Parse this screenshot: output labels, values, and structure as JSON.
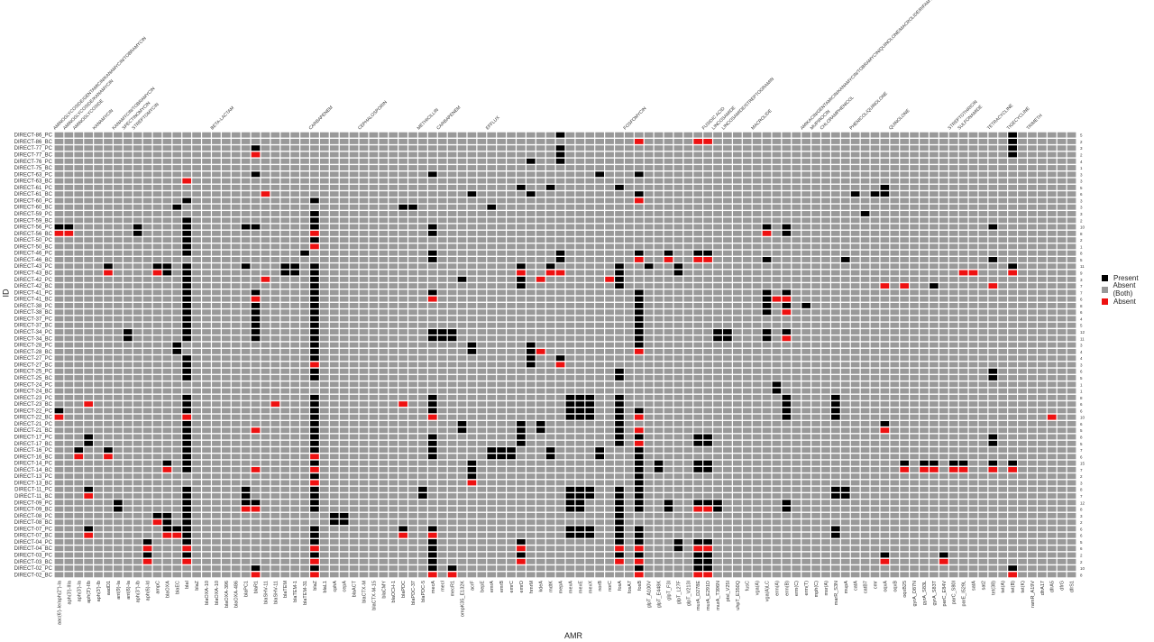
{
  "chart_data": {
    "type": "heatmap",
    "xlabel": "AMR",
    "ylabel": "ID",
    "legend": {
      "placement": "right",
      "entries": [
        {
          "label": "Present",
          "color": "#000000"
        },
        {
          "label": "Absent (Both)",
          "color": "#999999"
        },
        {
          "label": "Absent",
          "color": "#ee1111"
        }
      ]
    },
    "classes": [
      {
        "label": "AMINOGLYCOSIDE/GENTAMICIN/KANAMYCIN/TOBRAMYCIN",
        "start": 0
      },
      {
        "label": "AMINOGLYCOSIDE/KANAMYCIN",
        "start": 1
      },
      {
        "label": "AMINOGLYCOSIDE",
        "start": 2
      },
      {
        "label": "KANAMYCIN",
        "start": 4
      },
      {
        "label": "KANAMYCIN/TOBRAMYCIN",
        "start": 6
      },
      {
        "label": "SPECTINOMYCIN",
        "start": 7
      },
      {
        "label": "STREPTOMYCIN",
        "start": 8
      },
      {
        "label": "BETA-LACTAM",
        "start": 16
      },
      {
        "label": "CARBAPENEM",
        "start": 26
      },
      {
        "label": "CEPHALOSPORIN",
        "start": 31
      },
      {
        "label": "METHICILLIN",
        "start": 37
      },
      {
        "label": "CARBAPENEM",
        "start": 39
      },
      {
        "label": "EFFLUX",
        "start": 44
      },
      {
        "label": "FOSFOMYCIN",
        "start": 58
      },
      {
        "label": "FUSIDIC ACID",
        "start": 66
      },
      {
        "label": "LINCOSAMIDE",
        "start": 67
      },
      {
        "label": "LINCOSAMIDE/STREPTOGRAMIN",
        "start": 68
      },
      {
        "label": "MACROLIDE",
        "start": 71
      },
      {
        "label": "AMIKACIN/GENTAMICIN/KANAMYCIN/TOBRAMYCIN/QUINOLONE/MACROLIDE/RIFAMYCIN/TETRACYCLINE",
        "start": 76
      },
      {
        "label": "MUPIROCIN",
        "start": 77
      },
      {
        "label": "CHLORAMPHENICOL",
        "start": 78
      },
      {
        "label": "PHENICOL/QUINOLONE",
        "start": 81
      },
      {
        "label": "QUINOLONE",
        "start": 85
      },
      {
        "label": "STREPTOTHRICIN",
        "start": 91
      },
      {
        "label": "SULFONAMIDE",
        "start": 92
      },
      {
        "label": "TETRACYCLINE",
        "start": 95
      },
      {
        "label": "TIGECYCLINE",
        "start": 97
      },
      {
        "label": "TRIMETH",
        "start": 99
      }
    ],
    "genes": [
      "aac(6')-Ie/aph(2'')-Ia",
      "aph(3')-IIIa",
      "aph(3')-Ia",
      "aph(3')-IIb",
      "aph(3')-Ib",
      "aadD1",
      "ant(9)-Ia",
      "ant(6)-Ia",
      "aph(3'')-Ib",
      "aph(6)-Id",
      "ampC",
      "blaOXA",
      "blaEC",
      "blaI",
      "blaZ",
      "blaOXA-10",
      "blaOXA-10",
      "blaOXA-396",
      "blaOXA-486",
      "blaPC1",
      "blaR1",
      "blaSHV-11",
      "blaSHV-11",
      "blaTEM",
      "blaTEM-1",
      "blaTEM-31",
      "blaZ",
      "blaL1",
      "cphA",
      "cepA",
      "blaACT",
      "blaCTX-M",
      "blaCTX-M-15",
      "blaCMY",
      "blaOCH-1",
      "blaPDC",
      "blaPDC-37",
      "blaPDC-5",
      "mecA",
      "mecI",
      "mecR1",
      "ompK35_E132K",
      "acrF",
      "bepE",
      "emrA",
      "emrB",
      "emrC",
      "emrD",
      "hmrM",
      "kdeA",
      "mdtK",
      "mepA",
      "mexA",
      "mexE",
      "mexX",
      "norB",
      "norC",
      "fosA",
      "fosA7",
      "fosB",
      "glpT_A100V",
      "glpT_E448K",
      "glpT_F3I",
      "glpT_L27F",
      "glpT_V213I",
      "murA_D278E",
      "murA_E291D",
      "murA_T396N",
      "ptsI_V25I",
      "uhpT_E350Q",
      "fusC",
      "vga(A)",
      "vga(A)LC",
      "erm(A)",
      "erm(B)",
      "erm(C)",
      "erm(T)",
      "mph(C)",
      "msr(A)",
      "marR_S3N",
      "mupA",
      "catA",
      "catB7",
      "cmr",
      "oqxA",
      "oqxB",
      "oqxB25",
      "gyrA_D87N",
      "gyrA_S83L",
      "gyrA_S83T",
      "parC_E84V",
      "parC_S80I",
      "parE_I529L",
      "satA",
      "sat2",
      "tet(38)",
      "tet(A)",
      "tet(B)",
      "tet(K)",
      "ramR_A19V",
      "dfrA17",
      "dfrA5",
      "dfrG",
      "dfrS1"
    ],
    "ids": [
      "DIRECT-86_PC",
      "DIRECT-86_BC",
      "DIRECT-77_PC",
      "DIRECT-77_BC",
      "DIRECT-76_PC",
      "DIRECT-75_BC",
      "DIRECT-63_PC",
      "DIRECT-63_BC",
      "DIRECT-61_PC",
      "DIRECT-61_BC",
      "DIRECT-60_PC",
      "DIRECT-60_BC",
      "DIRECT-59_PC",
      "DIRECT-59_BC",
      "DIRECT-56_PC",
      "DIRECT-56_BC",
      "DIRECT-50_PC",
      "DIRECT-50_BC",
      "DIRECT-46_PC",
      "DIRECT-46_BC",
      "DIRECT-43_PC",
      "DIRECT-43_BC",
      "DIRECT-42_PC",
      "DIRECT-42_BC",
      "DIRECT-41_PC",
      "DIRECT-41_BC",
      "DIRECT-38_PC",
      "DIRECT-38_BC",
      "DIRECT-37_PC",
      "DIRECT-37_BC",
      "DIRECT-34_PC",
      "DIRECT-34_BC",
      "DIRECT-28_PC",
      "DIRECT-28_BC",
      "DIRECT-27_PC",
      "DIRECT-27_BC",
      "DIRECT-25_PC",
      "DIRECT-25_BC",
      "DIRECT-24_PC",
      "DIRECT-24_BC",
      "DIRECT-23_PC",
      "DIRECT-23_BC",
      "DIRECT-22_PC",
      "DIRECT-22_BC",
      "DIRECT-21_PC",
      "DIRECT-21_BC",
      "DIRECT-17_PC",
      "DIRECT-17_BC",
      "DIRECT-16_PC",
      "DIRECT-16_BC",
      "DIRECT-14_PC",
      "DIRECT-14_BC",
      "DIRECT-13_PC",
      "DIRECT-13_BC",
      "DIRECT-11_PC",
      "DIRECT-11_BC",
      "DIRECT-09_PC",
      "DIRECT-09_BC",
      "DIRECT-08_PC",
      "DIRECT-08_BC",
      "DIRECT-07_PC",
      "DIRECT-07_BC",
      "DIRECT-04_PC",
      "DIRECT-04_BC",
      "DIRECT-03_PC",
      "DIRECT-03_BC",
      "DIRECT-02_PC",
      "DIRECT-02_BC"
    ],
    "row_counts": [
      5,
      2,
      3,
      2,
      4,
      1,
      3,
      3,
      5,
      6,
      3,
      3,
      3,
      2,
      10,
      8,
      2,
      1,
      8,
      5,
      11,
      9,
      3,
      7,
      7,
      6,
      8,
      6,
      4,
      5,
      12,
      11,
      3,
      4,
      4,
      3,
      6,
      5,
      1,
      1,
      8,
      6,
      6,
      10,
      6,
      5,
      8,
      5,
      7,
      6,
      15,
      7,
      2,
      3,
      8,
      7,
      12,
      8,
      3,
      2,
      6,
      6,
      5,
      6,
      2,
      2,
      10,
      8
    ],
    "present": [
      [
        0,
        [
          51,
          97
        ]
      ],
      [
        1,
        [
          97
        ]
      ],
      [
        2,
        [
          20,
          51,
          97
        ]
      ],
      [
        3,
        [
          51,
          97
        ]
      ],
      [
        4,
        [
          48,
          51
        ]
      ],
      [
        6,
        [
          20,
          38,
          55,
          59
        ]
      ],
      [
        7,
        [
          13
        ]
      ],
      [
        8,
        [
          47,
          50,
          57,
          84
        ]
      ],
      [
        9,
        [
          42,
          48,
          59,
          81,
          83,
          84
        ]
      ],
      [
        10,
        [
          13,
          26,
          59
        ]
      ],
      [
        11,
        [
          12,
          35,
          36,
          44
        ]
      ],
      [
        12,
        [
          26,
          82
        ]
      ],
      [
        13,
        [
          13,
          26
        ]
      ],
      [
        14,
        [
          0,
          1,
          8,
          13,
          19,
          20,
          26,
          38,
          72,
          74,
          95
        ]
      ],
      [
        15,
        [
          8,
          13,
          26,
          38,
          72,
          74
        ]
      ],
      [
        16,
        [
          13,
          26
        ]
      ],
      [
        17,
        [
          13
        ]
      ],
      [
        18,
        [
          13,
          25,
          38,
          51,
          59,
          62,
          65,
          66
        ]
      ],
      [
        19,
        [
          38,
          51,
          72,
          80,
          95
        ]
      ],
      [
        20,
        [
          5,
          10,
          11,
          13,
          19,
          23,
          24,
          26,
          47,
          50,
          57,
          60,
          63,
          97
        ]
      ],
      [
        21,
        [
          5,
          10,
          11,
          13,
          23,
          24,
          26,
          47,
          50,
          57,
          63
        ]
      ],
      [
        22,
        [
          13,
          26,
          41,
          47,
          49,
          57
        ]
      ],
      [
        23,
        [
          13,
          26,
          47,
          57,
          89
        ]
      ],
      [
        24,
        [
          13,
          20,
          26,
          38,
          59,
          72,
          74
        ]
      ],
      [
        25,
        [
          13,
          20,
          26,
          59,
          72,
          74
        ]
      ],
      [
        26,
        [
          13,
          20,
          26,
          59,
          72,
          74,
          76
        ]
      ],
      [
        27,
        [
          13,
          20,
          26,
          59,
          72,
          74
        ]
      ],
      [
        28,
        [
          13,
          20,
          26,
          59
        ]
      ],
      [
        29,
        [
          13,
          20,
          26,
          59
        ]
      ],
      [
        30,
        [
          7,
          13,
          20,
          26,
          38,
          39,
          40,
          59,
          67,
          68,
          72,
          74
        ]
      ],
      [
        31,
        [
          7,
          13,
          20,
          26,
          38,
          39,
          40,
          59,
          67,
          68,
          72,
          74
        ]
      ],
      [
        32,
        [
          12,
          26,
          42,
          48,
          59
        ]
      ],
      [
        33,
        [
          12,
          26,
          42,
          48
        ]
      ],
      [
        34,
        [
          13,
          26,
          48,
          51
        ]
      ],
      [
        35,
        [
          13,
          26,
          48,
          51
        ]
      ],
      [
        36,
        [
          13,
          26,
          57,
          95
        ]
      ],
      [
        37,
        [
          13,
          26,
          57,
          95
        ]
      ],
      [
        38,
        [
          73
        ]
      ],
      [
        39,
        [
          73
        ]
      ],
      [
        40,
        [
          13,
          26,
          38,
          52,
          53,
          54,
          57,
          74,
          79
        ]
      ],
      [
        41,
        [
          3,
          13,
          26,
          38,
          52,
          53,
          54,
          57,
          74,
          79
        ]
      ],
      [
        42,
        [
          0,
          13,
          26,
          38,
          52,
          53,
          54,
          57,
          59,
          74,
          79
        ]
      ],
      [
        43,
        [
          0,
          13,
          26,
          38,
          52,
          53,
          54,
          57,
          59,
          74,
          79
        ]
      ],
      [
        44,
        [
          13,
          26,
          41,
          47,
          49,
          57,
          84
        ]
      ],
      [
        45,
        [
          13,
          26,
          41,
          47,
          49,
          57,
          84
        ]
      ],
      [
        46,
        [
          3,
          13,
          26,
          38,
          47,
          57,
          59,
          65,
          66,
          95
        ]
      ],
      [
        47,
        [
          3,
          13,
          26,
          38,
          47,
          57,
          59,
          65,
          66,
          95
        ]
      ],
      [
        48,
        [
          2,
          5,
          13,
          26,
          38,
          44,
          45,
          46,
          50,
          55,
          59
        ]
      ],
      [
        49,
        [
          2,
          5,
          13,
          26,
          38,
          44,
          45,
          46,
          50,
          55,
          59
        ]
      ],
      [
        50,
        [
          11,
          13,
          26,
          42,
          59,
          61,
          65,
          66,
          86,
          88,
          89,
          91,
          92,
          95,
          97
        ]
      ],
      [
        51,
        [
          11,
          13,
          26,
          42,
          59,
          61,
          65,
          66,
          86,
          88,
          89,
          91,
          92,
          95,
          97
        ]
      ],
      [
        52,
        [
          26,
          42,
          59
        ]
      ],
      [
        53,
        [
          26,
          42,
          59
        ]
      ],
      [
        54,
        [
          3,
          13,
          19,
          26,
          37,
          52,
          53,
          54,
          57,
          59,
          79,
          80
        ]
      ],
      [
        55,
        [
          3,
          13,
          19,
          26,
          37,
          52,
          53,
          54,
          57,
          59,
          79,
          80
        ]
      ],
      [
        56,
        [
          6,
          13,
          19,
          20,
          26,
          52,
          53,
          57,
          59,
          62,
          65,
          66,
          67,
          74
        ]
      ],
      [
        57,
        [
          6,
          13,
          19,
          20,
          26,
          52,
          53,
          57,
          59,
          62,
          65,
          66,
          67,
          74
        ]
      ],
      [
        58,
        [
          10,
          11,
          13,
          28,
          29,
          57
        ]
      ],
      [
        59,
        [
          10,
          11,
          13,
          28,
          29,
          57
        ]
      ],
      [
        60,
        [
          3,
          11,
          12,
          13,
          26,
          35,
          38,
          52,
          53,
          54,
          57,
          59,
          79
        ]
      ],
      [
        61,
        [
          3,
          11,
          12,
          13,
          26,
          35,
          38,
          52,
          53,
          54,
          57,
          59,
          79
        ]
      ],
      [
        62,
        [
          9,
          13,
          26,
          38,
          47,
          57,
          59,
          63,
          65,
          66
        ]
      ],
      [
        63,
        [
          9,
          13,
          26,
          38,
          47,
          57,
          59,
          63,
          65,
          66
        ]
      ],
      [
        64,
        [
          9,
          13,
          26,
          38,
          47,
          57,
          59,
          65,
          66,
          84,
          90
        ]
      ],
      [
        65,
        [
          9,
          13,
          26,
          38,
          47,
          57,
          59,
          65,
          66,
          84,
          90
        ]
      ],
      [
        66,
        [
          20,
          26,
          38,
          40,
          59,
          65,
          66,
          97
        ]
      ],
      [
        67,
        [
          20,
          26,
          38,
          40,
          59,
          65,
          66,
          97
        ]
      ]
    ],
    "absent": [
      [
        1,
        [
          59,
          65,
          66
        ]
      ],
      [
        3,
        [
          20
        ]
      ],
      [
        7,
        [
          13
        ]
      ],
      [
        9,
        [
          21
        ]
      ],
      [
        10,
        [
          59
        ]
      ],
      [
        15,
        [
          0,
          1,
          26,
          72
        ]
      ],
      [
        17,
        [
          26
        ]
      ],
      [
        19,
        [
          59,
          62,
          65,
          66
        ]
      ],
      [
        21,
        [
          5,
          10,
          47,
          50,
          51,
          92,
          93,
          97
        ]
      ],
      [
        22,
        [
          21,
          49,
          56
        ]
      ],
      [
        23,
        [
          84,
          86,
          95
        ]
      ],
      [
        25,
        [
          20,
          38,
          73,
          74
        ]
      ],
      [
        27,
        [
          74
        ]
      ],
      [
        31,
        [
          74
        ]
      ],
      [
        33,
        [
          49,
          59
        ]
      ],
      [
        35,
        [
          26,
          51
        ]
      ],
      [
        41,
        [
          3,
          22,
          35
        ]
      ],
      [
        43,
        [
          0,
          13,
          38,
          59,
          101
        ]
      ],
      [
        45,
        [
          20,
          59,
          84
        ]
      ],
      [
        47,
        [
          59
        ]
      ],
      [
        49,
        [
          2,
          5,
          26
        ]
      ],
      [
        51,
        [
          11,
          20,
          26,
          86,
          88,
          89,
          91,
          92,
          95,
          97
        ]
      ],
      [
        53,
        [
          26,
          42
        ]
      ],
      [
        55,
        [
          3
        ]
      ],
      [
        57,
        [
          19,
          20,
          65,
          66
        ]
      ],
      [
        59,
        [
          10
        ]
      ],
      [
        61,
        [
          3,
          11,
          12,
          35,
          38
        ]
      ],
      [
        63,
        [
          9,
          13,
          26,
          47,
          57,
          59,
          65,
          66
        ]
      ],
      [
        65,
        [
          9,
          13,
          26,
          47,
          57,
          59,
          84,
          90
        ]
      ],
      [
        67,
        [
          20,
          26,
          38,
          40,
          59,
          65,
          66,
          97
        ]
      ]
    ]
  }
}
